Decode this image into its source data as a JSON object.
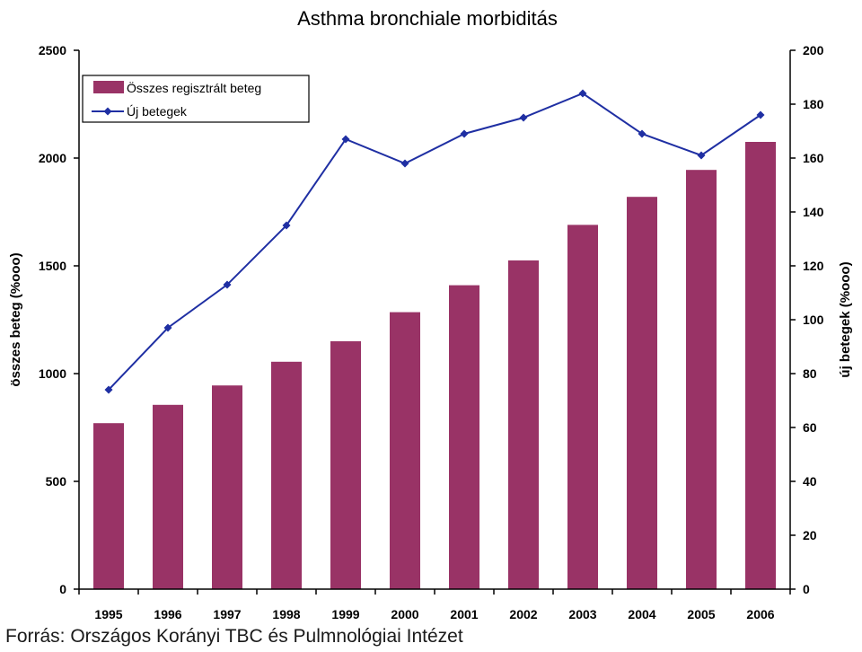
{
  "chart_data": {
    "type": "bar",
    "title": "Asthma bronchiale morbiditás",
    "xlabel": "",
    "ylabel": "összes beteg (%ooo)",
    "y2label": "új betegek (%ooo)",
    "categories": [
      "1995",
      "1996",
      "1997",
      "1998",
      "1999",
      "2000",
      "2001",
      "2002",
      "2003",
      "2004",
      "2005",
      "2006"
    ],
    "ylim": [
      0,
      2500
    ],
    "y_ticks": [
      0,
      500,
      1000,
      1500,
      2000,
      2500
    ],
    "y2lim": [
      0,
      200
    ],
    "y2_ticks": [
      0,
      20,
      40,
      60,
      80,
      100,
      120,
      140,
      160,
      180,
      200
    ],
    "grid": false,
    "legend_position": "top-left",
    "series": [
      {
        "name": "Összes regisztrált beteg",
        "type": "bar",
        "axis": "left",
        "color": "#993366",
        "values": [
          770,
          855,
          945,
          1055,
          1150,
          1285,
          1410,
          1525,
          1690,
          1820,
          1945,
          2075
        ]
      },
      {
        "name": "Új betegek",
        "type": "line",
        "axis": "right",
        "color": "#1f2fa3",
        "marker": "diamond",
        "values": [
          74,
          97,
          113,
          135,
          167,
          158,
          169,
          175,
          184,
          169,
          161,
          176
        ]
      }
    ]
  },
  "source": "Forrás: Országos Korányi TBC és Pulmnológiai Intézet"
}
